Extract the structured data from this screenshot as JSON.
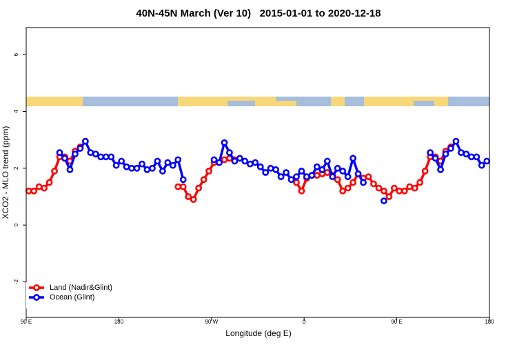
{
  "chart_data": {
    "type": "line",
    "title": "40N-45N March (Ver 10)   2015-01-01 to 2020-12-18",
    "x_label": "Longitude (deg E)",
    "y_label": "XCO2 - MLO trend (ppm)",
    "x": [
      92.5,
      97.5,
      102.5,
      107.5,
      112.5,
      117.5,
      122.5,
      127.5,
      132.5,
      137.5,
      142.5,
      147.5,
      152.5,
      157.5,
      162.5,
      167.5,
      172.5,
      177.5,
      182.5,
      187.5,
      192.5,
      197.5,
      202.5,
      207.5,
      212.5,
      217.5,
      222.5,
      227.5,
      232.5,
      237.5,
      242.5,
      247.5,
      252.5,
      257.5,
      262.5,
      267.5,
      272.5,
      277.5,
      282.5,
      287.5,
      292.5,
      297.5,
      302.5,
      307.5,
      312.5,
      317.5,
      322.5,
      327.5,
      332.5,
      337.5,
      342.5,
      347.5,
      352.5,
      357.5,
      362.5,
      367.5,
      372.5,
      377.5,
      382.5,
      387.5,
      392.5,
      397.5,
      402.5,
      407.5,
      412.5,
      417.5,
      422.5,
      427.5,
      432.5,
      437.5,
      442.5,
      447.5,
      452.5,
      457.5,
      462.5,
      467.5,
      472.5,
      477.5,
      482.5,
      487.5,
      492.5,
      497.5,
      502.5,
      507.5,
      512.5,
      517.5,
      522.5,
      527.5,
      532.5,
      537.5
    ],
    "series": [
      {
        "name": "Land (Nadir&Glint)",
        "color": "#ff0000",
        "values": [
          1.2,
          1.2,
          1.35,
          1.3,
          1.5,
          1.9,
          2.4,
          2.4,
          2.25,
          2.6,
          2.75,
          null,
          null,
          null,
          null,
          null,
          null,
          null,
          null,
          null,
          null,
          null,
          null,
          null,
          null,
          null,
          null,
          null,
          null,
          1.35,
          1.35,
          1.0,
          0.9,
          1.3,
          1.6,
          1.9,
          2.2,
          2.2,
          2.3,
          2.35,
          2.3,
          null,
          null,
          null,
          null,
          null,
          null,
          null,
          null,
          null,
          null,
          null,
          1.5,
          1.2,
          1.65,
          1.75,
          1.75,
          1.8,
          1.85,
          1.75,
          1.6,
          1.2,
          1.3,
          1.5,
          1.8,
          1.65,
          1.7,
          1.45,
          1.3,
          1.2,
          1.0,
          1.3,
          1.2,
          1.2,
          1.35,
          1.3,
          1.5,
          1.9,
          2.4,
          2.4,
          2.25,
          2.6,
          2.75,
          null,
          null,
          null,
          null,
          null,
          null,
          null
        ]
      },
      {
        "name": "Ocean (Glint)",
        "color": "#0000ff",
        "values": [
          null,
          null,
          null,
          null,
          null,
          null,
          2.55,
          2.35,
          1.95,
          2.5,
          2.7,
          2.95,
          2.55,
          2.5,
          2.4,
          2.4,
          2.4,
          2.1,
          2.25,
          2.05,
          2.0,
          2.0,
          2.15,
          1.95,
          2.0,
          2.25,
          1.9,
          2.2,
          2.1,
          2.3,
          1.6,
          null,
          null,
          null,
          null,
          null,
          2.3,
          2.2,
          2.9,
          2.55,
          2.25,
          2.35,
          2.25,
          2.15,
          2.2,
          2.05,
          1.85,
          2.0,
          1.95,
          1.7,
          1.85,
          1.6,
          1.7,
          1.9,
          1.7,
          1.75,
          2.05,
          1.95,
          2.25,
          1.7,
          2.0,
          1.9,
          1.7,
          2.35,
          1.8,
          1.5,
          null,
          null,
          null,
          0.85,
          null,
          null,
          null,
          null,
          null,
          null,
          null,
          null,
          2.55,
          2.35,
          1.95,
          2.5,
          2.7,
          2.95,
          2.55,
          2.5,
          2.4,
          2.4,
          2.1,
          2.25
        ]
      }
    ],
    "xlim": [
      90,
      540
    ],
    "xticks": [
      {
        "value": 90,
        "label": "90 E"
      },
      180,
      {
        "value": 270,
        "label": "90 W"
      },
      {
        "value": 360,
        "label": "0"
      },
      {
        "value": 450,
        "label": "90 E"
      },
      {
        "value": 540,
        "label": "180"
      }
    ],
    "ylim": [
      -3.25,
      6.95
    ],
    "yticks": [
      -2,
      0,
      2,
      4,
      6
    ],
    "legend": "bottom-left"
  }
}
